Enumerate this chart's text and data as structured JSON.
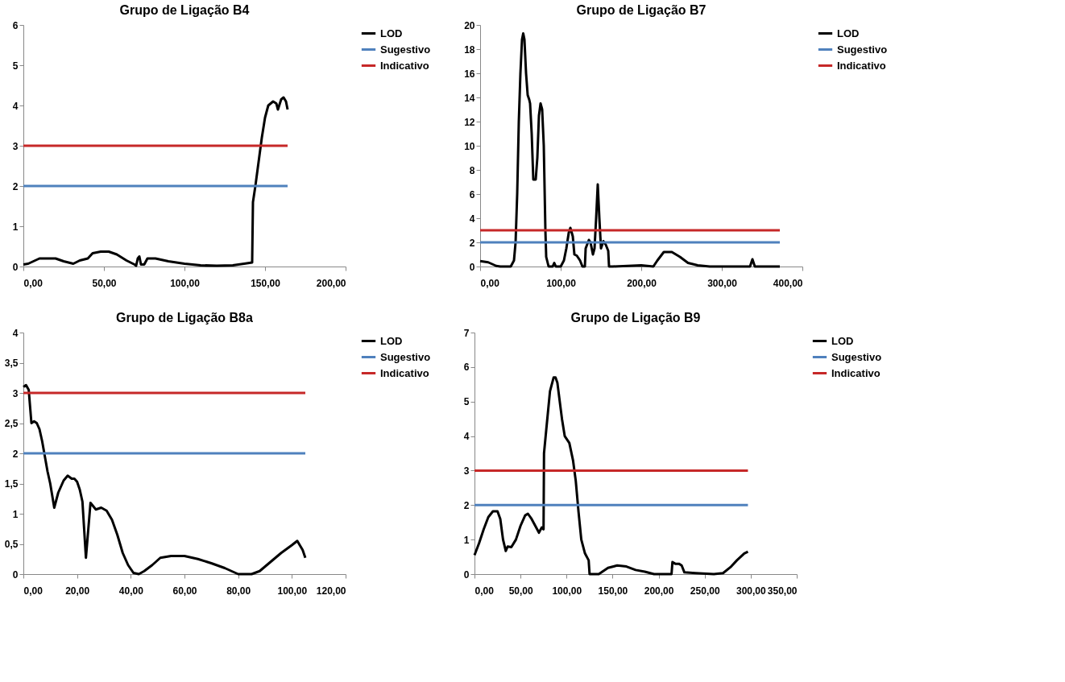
{
  "chart_data": [
    {
      "type": "line",
      "title": "Grupo de Ligação B4",
      "xlim": [
        0,
        200
      ],
      "ylim": [
        0,
        6
      ],
      "xticks": [
        {
          "value": 0,
          "label": "0,00"
        },
        {
          "value": 50,
          "label": "50,00"
        },
        {
          "value": 100,
          "label": "100,00"
        },
        {
          "value": 150,
          "label": "150,00"
        },
        {
          "value": 200,
          "label": "200,00"
        }
      ],
      "yticks": [
        0,
        1,
        2,
        3,
        4,
        5,
        6
      ],
      "legend": "right",
      "grid": false,
      "series": [
        {
          "name": "LOD",
          "color": "#000000",
          "x": [
            0,
            3,
            10,
            20,
            25,
            31,
            35,
            40,
            43,
            48,
            53,
            58,
            64,
            69,
            70,
            71,
            72,
            73,
            75,
            77,
            82,
            90,
            100,
            110,
            120,
            130,
            137,
            142,
            142.5,
            144,
            146,
            148,
            150,
            152,
            155,
            157,
            158,
            160,
            161.5,
            163,
            164
          ],
          "values": [
            0.05,
            0.07,
            0.2,
            0.2,
            0.13,
            0.07,
            0.15,
            0.2,
            0.33,
            0.37,
            0.37,
            0.3,
            0.15,
            0.05,
            0.02,
            0.2,
            0.25,
            0.05,
            0.05,
            0.2,
            0.2,
            0.13,
            0.07,
            0.03,
            0.02,
            0.03,
            0.07,
            0.1,
            1.6,
            2,
            2.6,
            3.2,
            3.7,
            4.0,
            4.1,
            4.05,
            3.9,
            4.15,
            4.2,
            4.1,
            3.9
          ]
        },
        {
          "name": "Sugestivo",
          "color": "#4f81bd",
          "x": [
            0,
            164
          ],
          "values": [
            2,
            2
          ]
        },
        {
          "name": "Indicativo",
          "color": "#c62828",
          "x": [
            0,
            164
          ],
          "values": [
            3,
            3
          ]
        }
      ]
    },
    {
      "type": "line",
      "title": "Grupo de Ligação B7",
      "xlim": [
        0,
        400
      ],
      "ylim": [
        0,
        20
      ],
      "xticks": [
        {
          "value": 0,
          "label": "0,00"
        },
        {
          "value": 100,
          "label": "100,00"
        },
        {
          "value": 200,
          "label": "200,00"
        },
        {
          "value": 300,
          "label": "300,00"
        },
        {
          "value": 400,
          "label": "400,00"
        }
      ],
      "yticks": [
        0,
        2,
        4,
        6,
        8,
        10,
        12,
        14,
        16,
        18,
        20
      ],
      "legend": "right",
      "grid": false,
      "series": [
        {
          "name": "LOD",
          "color": "#000000",
          "x": [
            0,
            10,
            20,
            25,
            38,
            42,
            44,
            46,
            48,
            50,
            52,
            53.5,
            55,
            57,
            59,
            61,
            62,
            64,
            66,
            69,
            71,
            73,
            75,
            77,
            79,
            81,
            82,
            85,
            90,
            92,
            94,
            100,
            104,
            107,
            110,
            112,
            115,
            117,
            120,
            124,
            127,
            130,
            131,
            135,
            137,
            140,
            142,
            144,
            146,
            148,
            150,
            153,
            156,
            159,
            160,
            165,
            200,
            215,
            220,
            228,
            238,
            248,
            258,
            270,
            285,
            335,
            338,
            341,
            372
          ],
          "values": [
            0.45,
            0.35,
            0.05,
            0,
            0,
            0.5,
            2,
            6,
            12,
            16,
            18.8,
            19.3,
            18.8,
            16,
            14.2,
            13.8,
            13.5,
            11,
            7.2,
            7.2,
            9,
            12.5,
            13.5,
            13,
            10,
            3,
            0.8,
            0,
            0,
            0.3,
            0,
            0,
            0.5,
            1.5,
            2.8,
            3.2,
            2.5,
            1.0,
            0.9,
            0.5,
            0,
            0,
            1.5,
            2.2,
            2,
            1.0,
            1.5,
            4,
            6.8,
            4,
            1.5,
            2.1,
            1.8,
            1.3,
            0,
            0,
            0.1,
            0,
            0.5,
            1.2,
            1.2,
            0.8,
            0.3,
            0.1,
            0,
            0,
            0.6,
            0,
            0
          ]
        },
        {
          "name": "Sugestivo",
          "color": "#4f81bd",
          "x": [
            0,
            372
          ],
          "values": [
            2,
            2
          ]
        },
        {
          "name": "Indicativo",
          "color": "#c62828",
          "x": [
            0,
            372
          ],
          "values": [
            3,
            3
          ]
        }
      ]
    },
    {
      "type": "line",
      "title": "Grupo de Ligação B8a",
      "xlim": [
        0,
        120
      ],
      "ylim": [
        0,
        4
      ],
      "xticks": [
        {
          "value": 0,
          "label": "0,00"
        },
        {
          "value": 20,
          "label": "20,00"
        },
        {
          "value": 40,
          "label": "40,00"
        },
        {
          "value": 60,
          "label": "60,00"
        },
        {
          "value": 80,
          "label": "80,00"
        },
        {
          "value": 100,
          "label": "100,00"
        },
        {
          "value": 120,
          "label": "120,00"
        }
      ],
      "yticks": [
        0,
        {
          "value": 0.5,
          "label": "0,5"
        },
        1,
        {
          "value": 1.5,
          "label": "1,5"
        },
        2,
        {
          "value": 2.5,
          "label": "2,5"
        },
        3,
        {
          "value": 3.5,
          "label": "3,5"
        },
        4
      ],
      "legend": "right",
      "grid": false,
      "series": [
        {
          "name": "LOD",
          "color": "#000000",
          "x": [
            0,
            1,
            2,
            3,
            4,
            5,
            6,
            7,
            8,
            9,
            10,
            11.5,
            13,
            15,
            16.5,
            18,
            19,
            20,
            21,
            22,
            23.3,
            25,
            27,
            29,
            31,
            33,
            35,
            37,
            39,
            41,
            43,
            45,
            48,
            51,
            55,
            60,
            65,
            70,
            75,
            80,
            85,
            88,
            92,
            96,
            100,
            102,
            104,
            105
          ],
          "values": [
            3.1,
            3.13,
            3.05,
            2.5,
            2.53,
            2.5,
            2.4,
            2.2,
            1.95,
            1.7,
            1.5,
            1.1,
            1.35,
            1.55,
            1.63,
            1.58,
            1.58,
            1.53,
            1.4,
            1.2,
            0.27,
            1.18,
            1.07,
            1.1,
            1.05,
            0.9,
            0.65,
            0.35,
            0.15,
            0.02,
            0,
            0.05,
            0.15,
            0.27,
            0.3,
            0.3,
            0.25,
            0.18,
            0.1,
            0,
            0,
            0.05,
            0.2,
            0.35,
            0.48,
            0.55,
            0.4,
            0.27
          ]
        },
        {
          "name": "Sugestivo",
          "color": "#4f81bd",
          "x": [
            0,
            105
          ],
          "values": [
            2,
            2
          ]
        },
        {
          "name": "Indicativo",
          "color": "#c62828",
          "x": [
            0,
            105
          ],
          "values": [
            3,
            3
          ]
        }
      ]
    },
    {
      "type": "line",
      "title": "Grupo de Ligação B9",
      "xlim": [
        0,
        350
      ],
      "ylim": [
        0,
        7
      ],
      "xticks": [
        {
          "value": 0,
          "label": "0,00"
        },
        {
          "value": 50,
          "label": "50,00"
        },
        {
          "value": 100,
          "label": "100,00"
        },
        {
          "value": 150,
          "label": "150,00"
        },
        {
          "value": 200,
          "label": "200,00"
        },
        {
          "value": 250,
          "label": "250,00"
        },
        {
          "value": 300,
          "label": "300,00"
        },
        {
          "value": 350,
          "label": "350,00"
        }
      ],
      "yticks": [
        0,
        1,
        2,
        3,
        4,
        5,
        6,
        7
      ],
      "legend": "right",
      "grid": false,
      "series": [
        {
          "name": "LOD",
          "color": "#000000",
          "x": [
            0,
            5,
            10,
            15,
            20,
            25,
            28,
            31,
            34,
            36,
            40,
            45,
            50,
            55,
            58,
            62,
            66,
            70,
            73,
            75,
            75.5,
            78,
            82,
            86,
            88,
            90,
            95,
            98,
            103,
            107,
            110,
            113,
            116,
            120,
            124,
            125,
            135,
            145,
            155,
            165,
            175,
            185,
            195,
            214,
            215,
            218,
            222,
            225,
            228,
            240,
            260,
            270,
            278,
            285,
            293,
            297
          ],
          "values": [
            0.55,
            0.9,
            1.3,
            1.65,
            1.82,
            1.82,
            1.6,
            1.0,
            0.67,
            0.8,
            0.78,
            1.0,
            1.4,
            1.7,
            1.75,
            1.6,
            1.4,
            1.2,
            1.35,
            1.3,
            3.5,
            4.2,
            5.3,
            5.7,
            5.7,
            5.55,
            4.5,
            4,
            3.8,
            3.3,
            2.7,
            1.8,
            1.0,
            0.6,
            0.4,
            0,
            0,
            0.18,
            0.25,
            0.22,
            0.12,
            0.07,
            0,
            0,
            0.35,
            0.3,
            0.3,
            0.25,
            0.05,
            0.03,
            0,
            0.03,
            0.2,
            0.4,
            0.6,
            0.65
          ]
        },
        {
          "name": "Sugestivo",
          "color": "#4f81bd",
          "x": [
            0,
            297
          ],
          "values": [
            2,
            2
          ]
        },
        {
          "name": "Indicativo",
          "color": "#c62828",
          "x": [
            0,
            297
          ],
          "values": [
            3,
            3
          ]
        }
      ]
    }
  ]
}
